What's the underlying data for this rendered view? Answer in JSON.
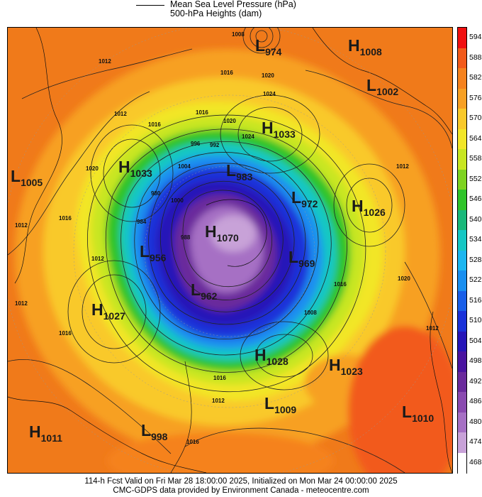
{
  "legend": {
    "line1": "Mean Sea Level Pressure (hPa)",
    "line2": "500-hPa Heights (dam)"
  },
  "colorbar": {
    "levels": [
      {
        "label": "594",
        "color": "#f01010"
      },
      {
        "label": "588",
        "color": "#f25a1a"
      },
      {
        "label": "582",
        "color": "#f5821e"
      },
      {
        "label": "576",
        "color": "#f7a024"
      },
      {
        "label": "570",
        "color": "#f9c92a"
      },
      {
        "label": "564",
        "color": "#f2e628"
      },
      {
        "label": "558",
        "color": "#c8e622"
      },
      {
        "label": "552",
        "color": "#7ed321"
      },
      {
        "label": "546",
        "color": "#2fc42a"
      },
      {
        "label": "540",
        "color": "#19b87a"
      },
      {
        "label": "534",
        "color": "#16c7c4"
      },
      {
        "label": "528",
        "color": "#1cb6f0"
      },
      {
        "label": "522",
        "color": "#1a8ff0"
      },
      {
        "label": "516",
        "color": "#1a5fe8"
      },
      {
        "label": "510",
        "color": "#1a32d9"
      },
      {
        "label": "504",
        "color": "#2616b8"
      },
      {
        "label": "498",
        "color": "#4a14a0"
      },
      {
        "label": "492",
        "color": "#6a2a9c"
      },
      {
        "label": "486",
        "color": "#8a4ab0"
      },
      {
        "label": "480",
        "color": "#a670c4"
      },
      {
        "label": "474",
        "color": "#c8a2d8"
      },
      {
        "label": "468",
        "color": "#ffffff"
      }
    ]
  },
  "systems": [
    {
      "type": "L",
      "value": "974"
    },
    {
      "type": "H",
      "value": "1008"
    },
    {
      "type": "L",
      "value": "1002"
    },
    {
      "type": "H",
      "value": "1033"
    },
    {
      "type": "H",
      "value": "1033"
    },
    {
      "type": "L",
      "value": "1005"
    },
    {
      "type": "L",
      "value": "983"
    },
    {
      "type": "L",
      "value": "972"
    },
    {
      "type": "H",
      "value": "1026"
    },
    {
      "type": "H",
      "value": "1070"
    },
    {
      "type": "L",
      "value": "956"
    },
    {
      "type": "L",
      "value": "969"
    },
    {
      "type": "L",
      "value": "962"
    },
    {
      "type": "H",
      "value": "1027"
    },
    {
      "type": "H",
      "value": "1028"
    },
    {
      "type": "H",
      "value": "1023"
    },
    {
      "type": "L",
      "value": "1009"
    },
    {
      "type": "L",
      "value": "1010"
    },
    {
      "type": "H",
      "value": "1011"
    },
    {
      "type": "L",
      "value": "998"
    }
  ],
  "isobar_labels": [
    "1008",
    "1012",
    "1016",
    "1020",
    "1024",
    "1012",
    "1016",
    "1020",
    "1024",
    "1012",
    "1016",
    "1020",
    "1012",
    "1016",
    "1020",
    "1012",
    "1016",
    "1012",
    "1016",
    "1008",
    "1004",
    "1000",
    "996",
    "992",
    "988",
    "984",
    "980",
    "1012",
    "1016",
    "1012",
    "1016"
  ],
  "footer": {
    "line1": "114-h Fcst Valid on Fri Mar 28 18:00:00 2025, Initialized on Mon Mar 24 00:00:00 2025",
    "line2": "CMC-GDPS data provided by Environment Canada - meteocentre.com"
  }
}
